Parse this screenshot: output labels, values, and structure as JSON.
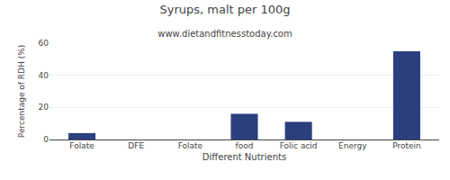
{
  "chart_data": {
    "type": "bar",
    "title": "Syrups, malt per 100g",
    "subtitle": "www.dietandfitnesstoday.com",
    "xlabel": "Different Nutrients",
    "ylabel": "Percentage of RDH (%)",
    "categories": [
      "Folate",
      "DFE",
      "Folate",
      "food",
      "Folic acid",
      "Energy",
      "Protein"
    ],
    "values": [
      4,
      0,
      0,
      16,
      11,
      0,
      55
    ],
    "color": "#2b3f7e",
    "ylim": [
      0,
      60
    ],
    "yticks": [
      0,
      20,
      40,
      60
    ],
    "grid": true
  }
}
